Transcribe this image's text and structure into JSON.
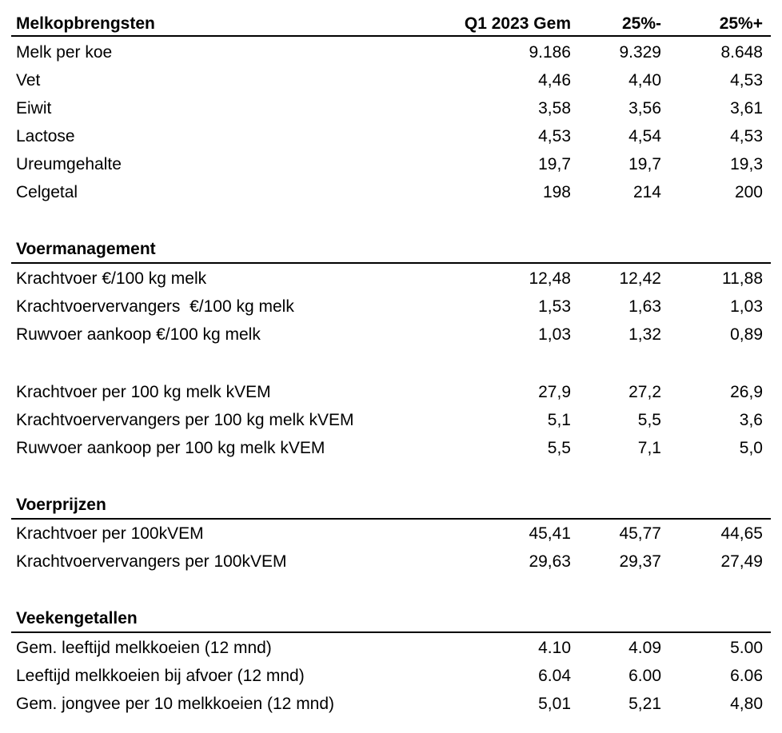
{
  "columns": {
    "label": "Melkopbrengsten",
    "c1": "Q1 2023 Gem",
    "c2": "25%-",
    "c3": "25%+"
  },
  "sections": [
    {
      "title": "Melkopbrengsten",
      "rows": [
        {
          "label": "Melk per koe",
          "v1": "9.186",
          "v2": "9.329",
          "v3": "8.648"
        },
        {
          "label": "Vet",
          "v1": "4,46",
          "v2": "4,40",
          "v3": "4,53"
        },
        {
          "label": "Eiwit",
          "v1": "3,58",
          "v2": "3,56",
          "v3": "3,61"
        },
        {
          "label": "Lactose",
          "v1": "4,53",
          "v2": "4,54",
          "v3": "4,53"
        },
        {
          "label": "Ureumgehalte",
          "v1": "19,7",
          "v2": "19,7",
          "v3": "19,3"
        },
        {
          "label": "Celgetal",
          "v1": "198",
          "v2": "214",
          "v3": "200"
        }
      ]
    },
    {
      "title": "Voermanagement",
      "rows": [
        {
          "label": "Krachtvoer €/100 kg melk",
          "v1": "12,48",
          "v2": "12,42",
          "v3": "11,88"
        },
        {
          "label": "Krachtvoervervangers  €/100 kg melk",
          "v1": "1,53",
          "v2": "1,63",
          "v3": "1,03"
        },
        {
          "label": "Ruwvoer aankoop €/100 kg melk",
          "v1": "1,03",
          "v2": "1,32",
          "v3": "0,89"
        },
        {
          "label": "Krachtvoer per 100 kg melk kVEM",
          "v1": "27,9",
          "v2": "27,2",
          "v3": "26,9"
        },
        {
          "label": "Krachtvoervervangers per 100 kg melk kVEM",
          "v1": "5,1",
          "v2": "5,5",
          "v3": "3,6"
        },
        {
          "label": "Ruwvoer aankoop per 100 kg melk kVEM",
          "v1": "5,5",
          "v2": "7,1",
          "v3": "5,0"
        }
      ]
    },
    {
      "title": "Voerprijzen",
      "rows": [
        {
          "label": "Krachtvoer per 100kVEM",
          "v1": "45,41",
          "v2": "45,77",
          "v3": "44,65"
        },
        {
          "label": "Krachtvoervervangers per 100kVEM",
          "v1": "29,63",
          "v2": "29,37",
          "v3": "27,49"
        }
      ]
    },
    {
      "title": "Veekengetallen",
      "rows": [
        {
          "label": "Gem. leeftijd melkkoeien (12 mnd)",
          "v1": "4.10",
          "v2": "4.09",
          "v3": "5.00"
        },
        {
          "label": "Leeftijd melkkoeien bij afvoer (12 mnd)",
          "v1": "6.04",
          "v2": "6.00",
          "v3": "6.06"
        },
        {
          "label": "Gem. jongvee per 10 melkkoeien (12 mnd)",
          "v1": "5,01",
          "v2": "5,21",
          "v3": "4,80"
        }
      ]
    }
  ]
}
